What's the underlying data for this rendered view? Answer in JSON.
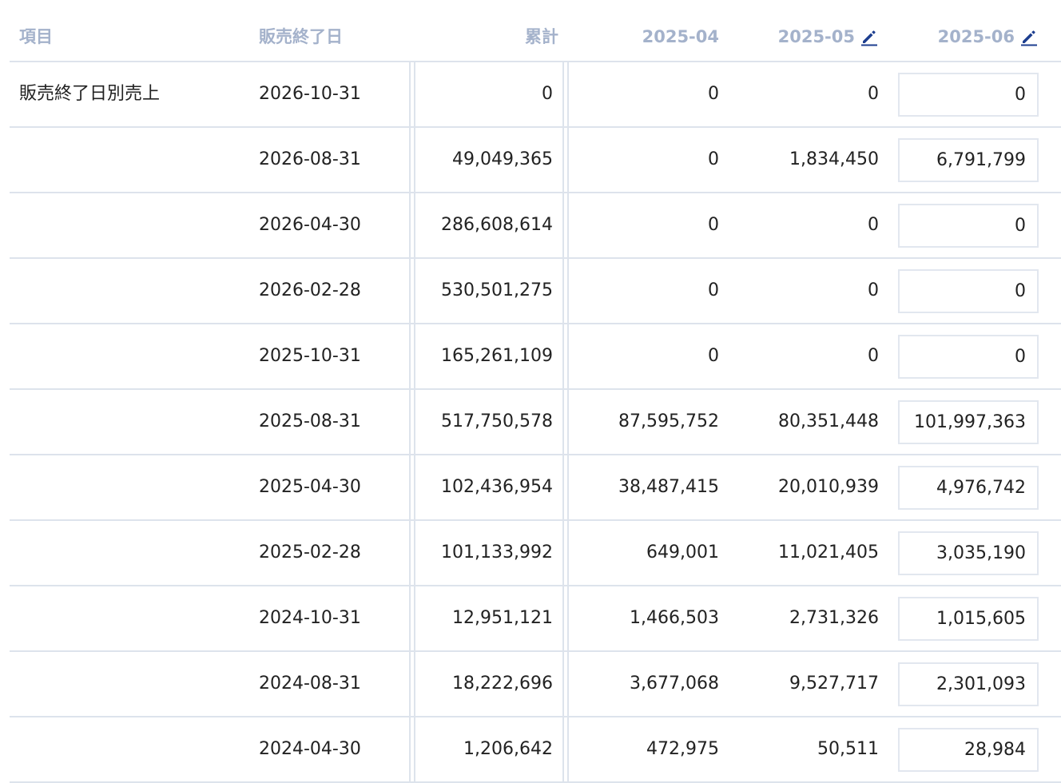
{
  "headers": {
    "item": "項目",
    "end_date": "販売終了日",
    "cumulative": "累計",
    "m1": "2025-04",
    "m2": "2025-05",
    "m3": "2025-06"
  },
  "icons": {
    "edit": "pencil-icon"
  },
  "colors": {
    "header_text": "#a4b2cb",
    "edit_icon": "#1d3e8f",
    "grid_line": "#dde3ec"
  },
  "rows": [
    {
      "label": "販売終了日別売上",
      "date": "2026-10-31",
      "cum": "0",
      "m1": "0",
      "m2": "0",
      "m3": "0"
    },
    {
      "label": "",
      "date": "2026-08-31",
      "cum": "49,049,365",
      "m1": "0",
      "m2": "1,834,450",
      "m3": "6,791,799"
    },
    {
      "label": "",
      "date": "2026-04-30",
      "cum": "286,608,614",
      "m1": "0",
      "m2": "0",
      "m3": "0"
    },
    {
      "label": "",
      "date": "2026-02-28",
      "cum": "530,501,275",
      "m1": "0",
      "m2": "0",
      "m3": "0"
    },
    {
      "label": "",
      "date": "2025-10-31",
      "cum": "165,261,109",
      "m1": "0",
      "m2": "0",
      "m3": "0"
    },
    {
      "label": "",
      "date": "2025-08-31",
      "cum": "517,750,578",
      "m1": "87,595,752",
      "m2": "80,351,448",
      "m3": "101,997,363"
    },
    {
      "label": "",
      "date": "2025-04-30",
      "cum": "102,436,954",
      "m1": "38,487,415",
      "m2": "20,010,939",
      "m3": "4,976,742"
    },
    {
      "label": "",
      "date": "2025-02-28",
      "cum": "101,133,992",
      "m1": "649,001",
      "m2": "11,021,405",
      "m3": "3,035,190"
    },
    {
      "label": "",
      "date": "2024-10-31",
      "cum": "12,951,121",
      "m1": "1,466,503",
      "m2": "2,731,326",
      "m3": "1,015,605"
    },
    {
      "label": "",
      "date": "2024-08-31",
      "cum": "18,222,696",
      "m1": "3,677,068",
      "m2": "9,527,717",
      "m3": "2,301,093"
    },
    {
      "label": "",
      "date": "2024-04-30",
      "cum": "1,206,642",
      "m1": "472,975",
      "m2": "50,511",
      "m3": "28,984"
    }
  ]
}
